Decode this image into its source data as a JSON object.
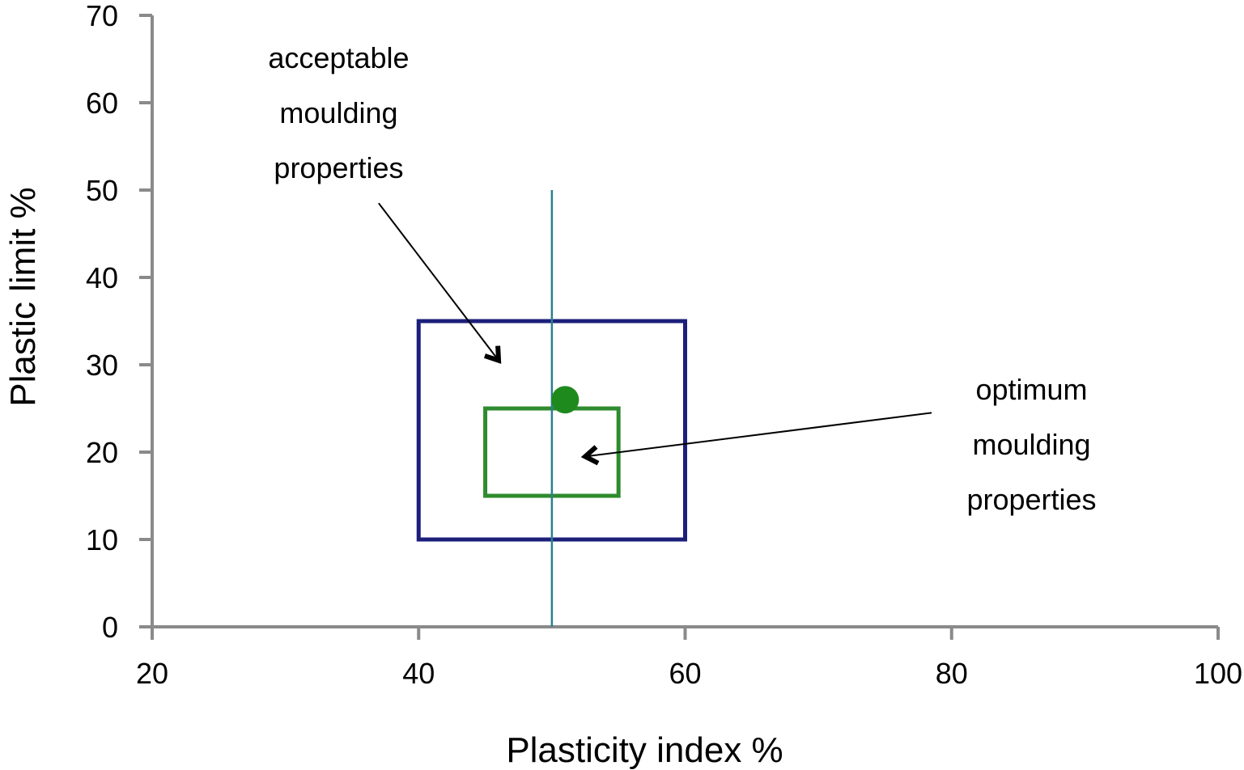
{
  "chart_data": {
    "type": "scatter",
    "title": "",
    "xlabel": "Plasticity index %",
    "ylabel": "Plastic limit %",
    "xlim": [
      20,
      100
    ],
    "ylim": [
      0,
      70
    ],
    "xticks": [
      20,
      40,
      60,
      80,
      100
    ],
    "yticks": [
      0,
      10,
      20,
      30,
      40,
      50,
      60,
      70
    ],
    "grid": false,
    "regions": [
      {
        "name": "acceptable moulding properties",
        "x": [
          40,
          60
        ],
        "y": [
          10,
          35
        ],
        "color": "#1c1f7a"
      },
      {
        "name": "optimum moulding properties",
        "x": [
          45,
          55
        ],
        "y": [
          15,
          25
        ],
        "color": "#2e8b2e"
      }
    ],
    "vline": {
      "x": 50,
      "y": [
        0,
        50
      ],
      "color": "#2a7f8f"
    },
    "points": [
      {
        "x": 51,
        "y": 26,
        "color": "#1e8a1e"
      }
    ],
    "annotations": [
      {
        "text": [
          "acceptable",
          "moulding",
          "properties"
        ],
        "text_x": 34,
        "text_y": 64,
        "arrow_from": [
          37,
          48.5
        ],
        "arrow_to": [
          46,
          30.5
        ]
      },
      {
        "text": [
          "optimum",
          "moulding",
          "properties"
        ],
        "text_x": 86,
        "text_y": 26,
        "arrow_from": [
          78.5,
          24.5
        ],
        "arrow_to": [
          52.5,
          19.5
        ]
      }
    ]
  }
}
